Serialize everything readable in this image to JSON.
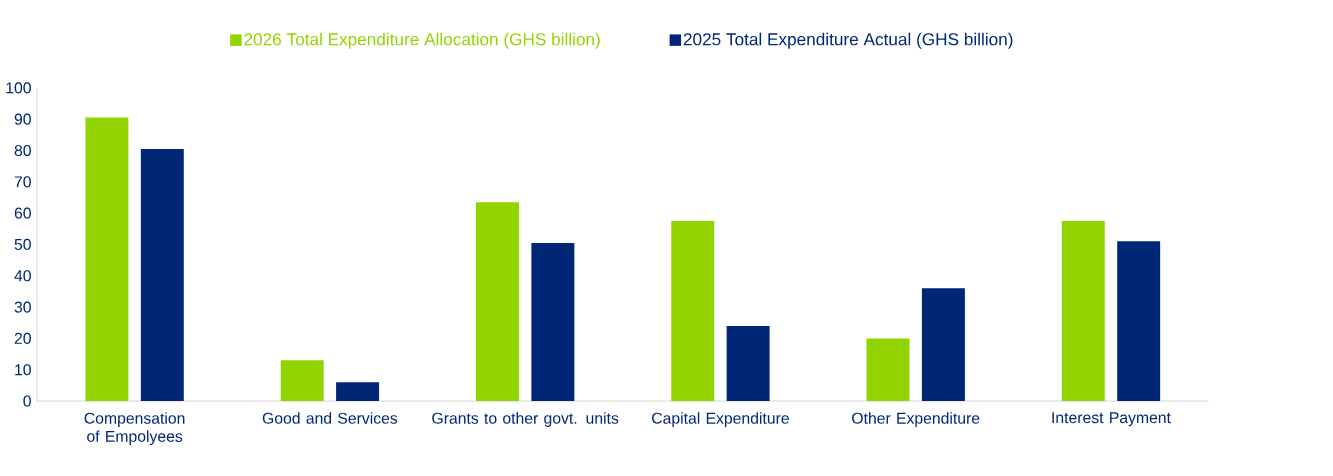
{
  "chart_data": {
    "type": "bar",
    "categories": [
      "Compensation of Empolyees",
      "Good and Services",
      "Grants to other govt. units",
      "Capital Expenditure",
      "Other Expenditure",
      "Interest Payment"
    ],
    "series": [
      {
        "name": "2026 Total Expenditure Allocation (GHS billion)",
        "color": "#92d400",
        "values": [
          90.5,
          13,
          63.5,
          57.5,
          20,
          57.5
        ]
      },
      {
        "name": "2025 Total Expenditure Actual (GHS billion)",
        "color": "#002776",
        "values": [
          80.5,
          6,
          50.5,
          24,
          36,
          51
        ]
      }
    ],
    "ylim": [
      0,
      100
    ],
    "yticks": [
      0,
      10,
      20,
      30,
      40,
      50,
      60,
      70,
      80,
      90,
      100
    ],
    "grid": false,
    "legend": "top"
  }
}
